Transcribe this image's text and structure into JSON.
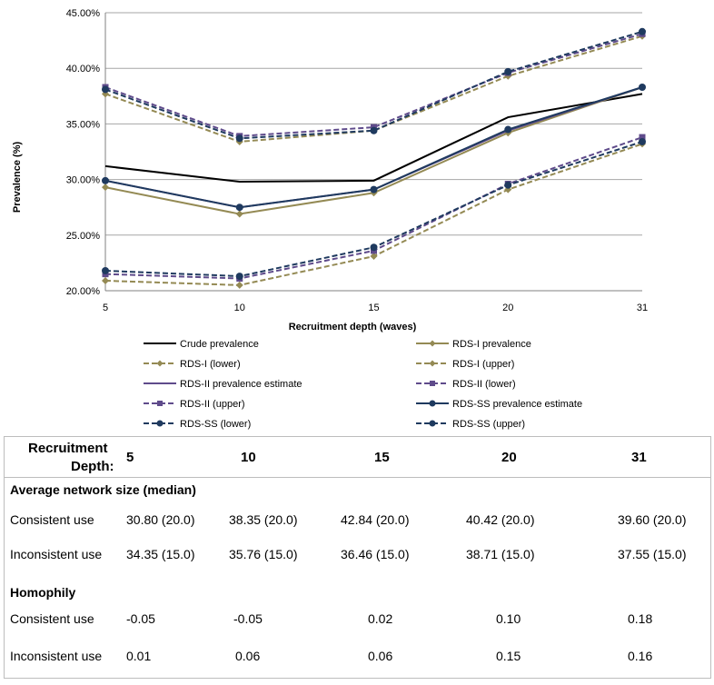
{
  "chart_data": {
    "type": "line",
    "title": "",
    "xlabel": "Recruitment depth (waves)",
    "ylabel": "Prevalence (%)",
    "categories": [
      "5",
      "10",
      "15",
      "20",
      "31"
    ],
    "ylim": [
      20,
      45
    ],
    "yticks": [
      "20.00%",
      "25.00%",
      "30.00%",
      "35.00%",
      "40.00%",
      "45.00%"
    ],
    "ytick_values": [
      20,
      25,
      30,
      35,
      40,
      45
    ],
    "grid": true,
    "legend_position": "bottom",
    "series": [
      {
        "name": "Crude prevalence",
        "values": [
          31.2,
          29.8,
          29.9,
          35.6,
          37.7
        ],
        "color": "#000000",
        "dash": false,
        "marker": "none"
      },
      {
        "name": "RDS-I prevalence",
        "values": [
          29.3,
          26.9,
          28.8,
          34.2,
          38.3
        ],
        "color": "#948a54",
        "dash": false,
        "marker": "diamond"
      },
      {
        "name": "RDS-I (lower)",
        "values": [
          20.9,
          20.5,
          23.1,
          29.1,
          33.2
        ],
        "color": "#948a54",
        "dash": true,
        "marker": "diamond"
      },
      {
        "name": "RDS-I (upper)",
        "values": [
          37.7,
          33.4,
          34.4,
          39.3,
          42.9
        ],
        "color": "#948a54",
        "dash": true,
        "marker": "diamond"
      },
      {
        "name": "RDS-II prevalence estimate",
        "values": [
          29.9,
          27.5,
          29.1,
          34.4,
          38.3
        ],
        "color": "#5f4b8b",
        "dash": false,
        "marker": "none"
      },
      {
        "name": "RDS-II (lower)",
        "values": [
          21.5,
          21.1,
          23.6,
          29.6,
          33.8
        ],
        "color": "#5f4b8b",
        "dash": true,
        "marker": "square"
      },
      {
        "name": "RDS-II (upper)",
        "values": [
          38.3,
          33.9,
          34.7,
          39.6,
          43.1
        ],
        "color": "#5f4b8b",
        "dash": true,
        "marker": "square"
      },
      {
        "name": "RDS-SS prevalence estimate",
        "values": [
          29.9,
          27.5,
          29.1,
          34.5,
          38.3
        ],
        "color": "#1f3a5f",
        "dash": false,
        "marker": "circle"
      },
      {
        "name": "RDS-SS (lower)",
        "values": [
          21.8,
          21.3,
          23.9,
          29.5,
          33.4
        ],
        "color": "#1f3a5f",
        "dash": true,
        "marker": "circle"
      },
      {
        "name": "RDS-SS (upper)",
        "values": [
          38.1,
          33.7,
          34.4,
          39.7,
          43.3
        ],
        "color": "#1f3a5f",
        "dash": true,
        "marker": "circle"
      }
    ]
  },
  "table": {
    "header_label_line1": "Recruitment",
    "header_label_line2": "Depth:",
    "columns": [
      "5",
      "10",
      "15",
      "20",
      "31"
    ],
    "section1_title": "Average network size (median)",
    "section1_rows": [
      {
        "label": "Consistent use",
        "values": [
          "30.80 (20.0)",
          "38.35 (20.0)",
          "42.84 (20.0)",
          "40.42 (20.0)",
          "39.60 (20.0)"
        ]
      },
      {
        "label": "Inconsistent use",
        "values": [
          "34.35 (15.0)",
          "35.76 (15.0)",
          "36.46 (15.0)",
          "38.71 (15.0)",
          "37.55 (15.0)"
        ]
      }
    ],
    "section2_title": "Homophily",
    "section2_rows": [
      {
        "label": "Consistent use",
        "values": [
          "-0.05",
          "-0.05",
          "0.02",
          "0.10",
          "0.18"
        ]
      },
      {
        "label": "Inconsistent use",
        "values": [
          "0.01",
          "0.06",
          "0.06",
          "0.15",
          "0.16"
        ]
      }
    ]
  }
}
